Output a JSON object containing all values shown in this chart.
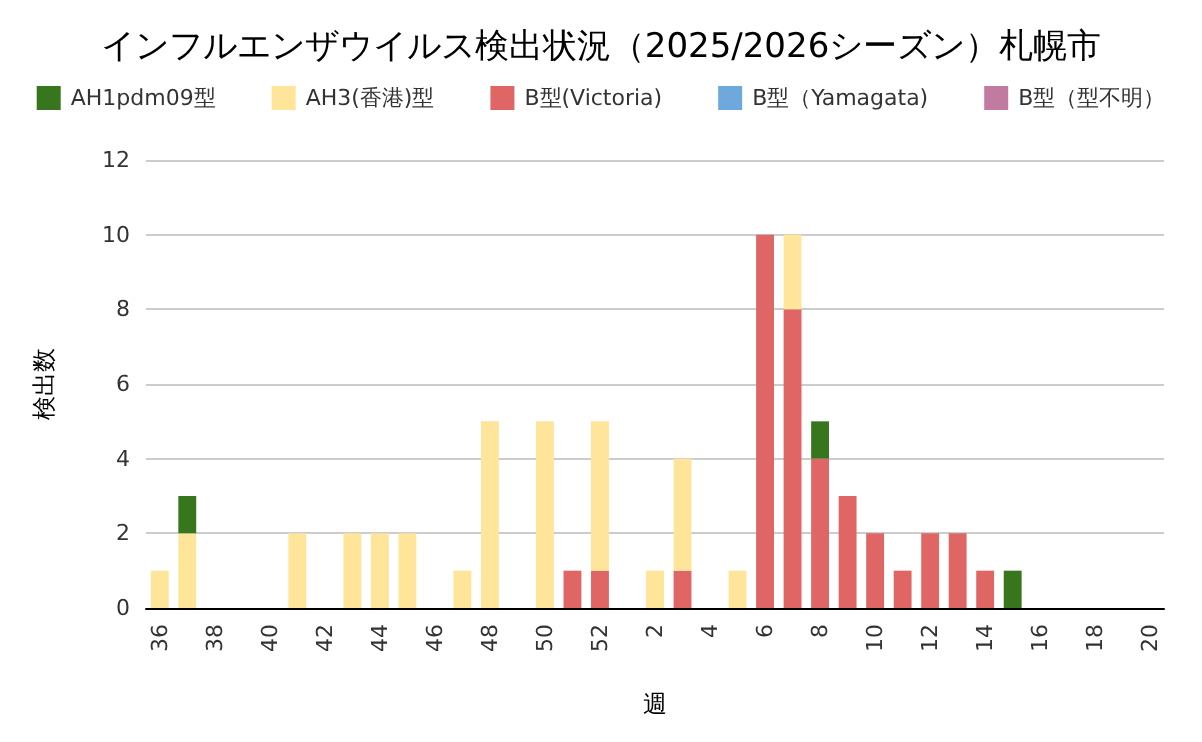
{
  "chart_data": {
    "type": "bar",
    "title": "インフルエンザウイルス検出状況（2025/2026シーズン）札幌市",
    "xlabel": "週",
    "ylabel": "検出数",
    "categories": [
      "36",
      null,
      "38",
      null,
      "40",
      null,
      "42",
      null,
      "44",
      null,
      "46",
      null,
      "48",
      null,
      "50",
      null,
      "52",
      null,
      "2",
      null,
      "4",
      null,
      "6",
      null,
      "8",
      null,
      "10",
      null,
      "12",
      null,
      "14",
      null,
      "16",
      null,
      "18",
      null,
      "20"
    ],
    "stacked": true,
    "series": [
      {
        "name": "B型(Victoria)",
        "color": "#e06666",
        "values": [
          0,
          0,
          0,
          0,
          0,
          0,
          0,
          0,
          0,
          0,
          0,
          0,
          0,
          0,
          0,
          1,
          1,
          0,
          0,
          1,
          0,
          0,
          10,
          8,
          4,
          3,
          2,
          1,
          2,
          2,
          1,
          0,
          0,
          0,
          0,
          0,
          0
        ]
      },
      {
        "name": "AH3(香港)型",
        "color": "#ffe599",
        "values": [
          1,
          2,
          0,
          0,
          0,
          2,
          0,
          2,
          2,
          2,
          0,
          1,
          5,
          0,
          5,
          0,
          4,
          0,
          1,
          3,
          0,
          1,
          0,
          2,
          0,
          0,
          0,
          0,
          0,
          0,
          0,
          0,
          0,
          0,
          0,
          0,
          0
        ]
      },
      {
        "name": "AH1pdm09型",
        "color": "#38761d",
        "values": [
          0,
          1,
          0,
          0,
          0,
          0,
          0,
          0,
          0,
          0,
          0,
          0,
          0,
          0,
          0,
          0,
          0,
          0,
          0,
          0,
          0,
          0,
          0,
          0,
          1,
          0,
          0,
          0,
          0,
          0,
          0,
          1,
          0,
          0,
          0,
          0,
          0
        ]
      },
      {
        "name": "B型（Yamagata)",
        "color": "#6fa8dc",
        "values": [
          0,
          0,
          0,
          0,
          0,
          0,
          0,
          0,
          0,
          0,
          0,
          0,
          0,
          0,
          0,
          0,
          0,
          0,
          0,
          0,
          0,
          0,
          0,
          0,
          0,
          0,
          0,
          0,
          0,
          0,
          0,
          0,
          0,
          0,
          0,
          0,
          0
        ]
      },
      {
        "name": "B型（型不明）",
        "color": "#c27ba0",
        "values": [
          0,
          0,
          0,
          0,
          0,
          0,
          0,
          0,
          0,
          0,
          0,
          0,
          0,
          0,
          0,
          0,
          0,
          0,
          0,
          0,
          0,
          0,
          0,
          0,
          0,
          0,
          0,
          0,
          0,
          0,
          0,
          0,
          0,
          0,
          0,
          0,
          0
        ]
      }
    ],
    "ylim": [
      0,
      12
    ],
    "yticks": [
      0,
      2,
      4,
      6,
      8,
      10,
      12
    ],
    "grid": "y",
    "legend": "top"
  }
}
